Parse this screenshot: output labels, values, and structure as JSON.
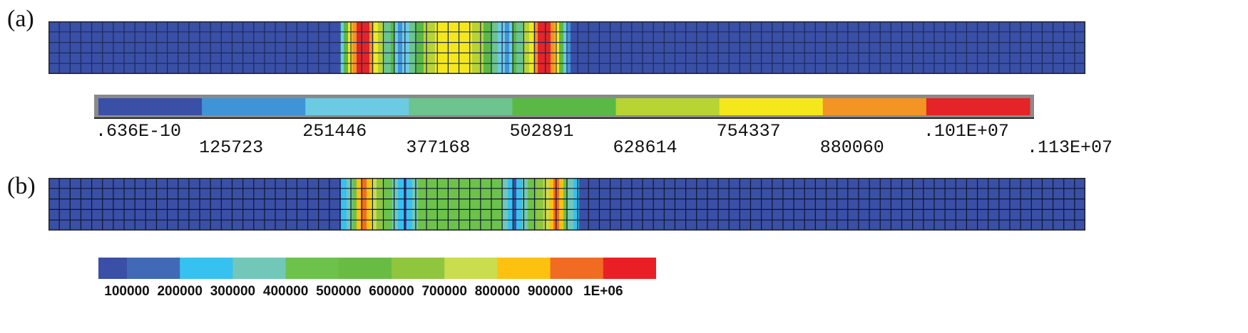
{
  "figure": {
    "panel_a_label": "(a)",
    "panel_b_label": "(b)"
  },
  "legend_a": {
    "colors": [
      "#3a4fa6",
      "#3f94d8",
      "#6ccbe3",
      "#6cc48e",
      "#5ab945",
      "#b7d433",
      "#f4e81c",
      "#f39424",
      "#e42426"
    ],
    "tick_labels": [
      ".636E-10",
      "125723",
      "251446",
      "377168",
      "502891",
      "628614",
      "754337",
      "880060",
      ".101E+07",
      ".113E+07"
    ]
  },
  "legend_b": {
    "colors": [
      "#3a4fa6",
      "#4169b6",
      "#36c1f0",
      "#72c8b8",
      "#6cc24a",
      "#69bc43",
      "#8fc63e",
      "#c9dd4f",
      "#fcc20f",
      "#f26b23",
      "#ea1f26"
    ],
    "tick_labels": [
      "100000",
      "200000",
      "300000",
      "400000",
      "500000",
      "600000",
      "700000",
      "800000",
      "900000",
      "1E+06"
    ]
  },
  "mesh_a": {
    "base_color": "#3a4fa6",
    "columns": 10,
    "column_colors_center": [
      "#4fb4e6",
      "#f2e11c",
      "#e42426",
      "#f2e11c",
      "#6cc48e",
      "#5ab945",
      "#b7d433",
      "#f4e81c"
    ]
  },
  "mesh_b": {
    "base_color": "#3a4fa6"
  }
}
